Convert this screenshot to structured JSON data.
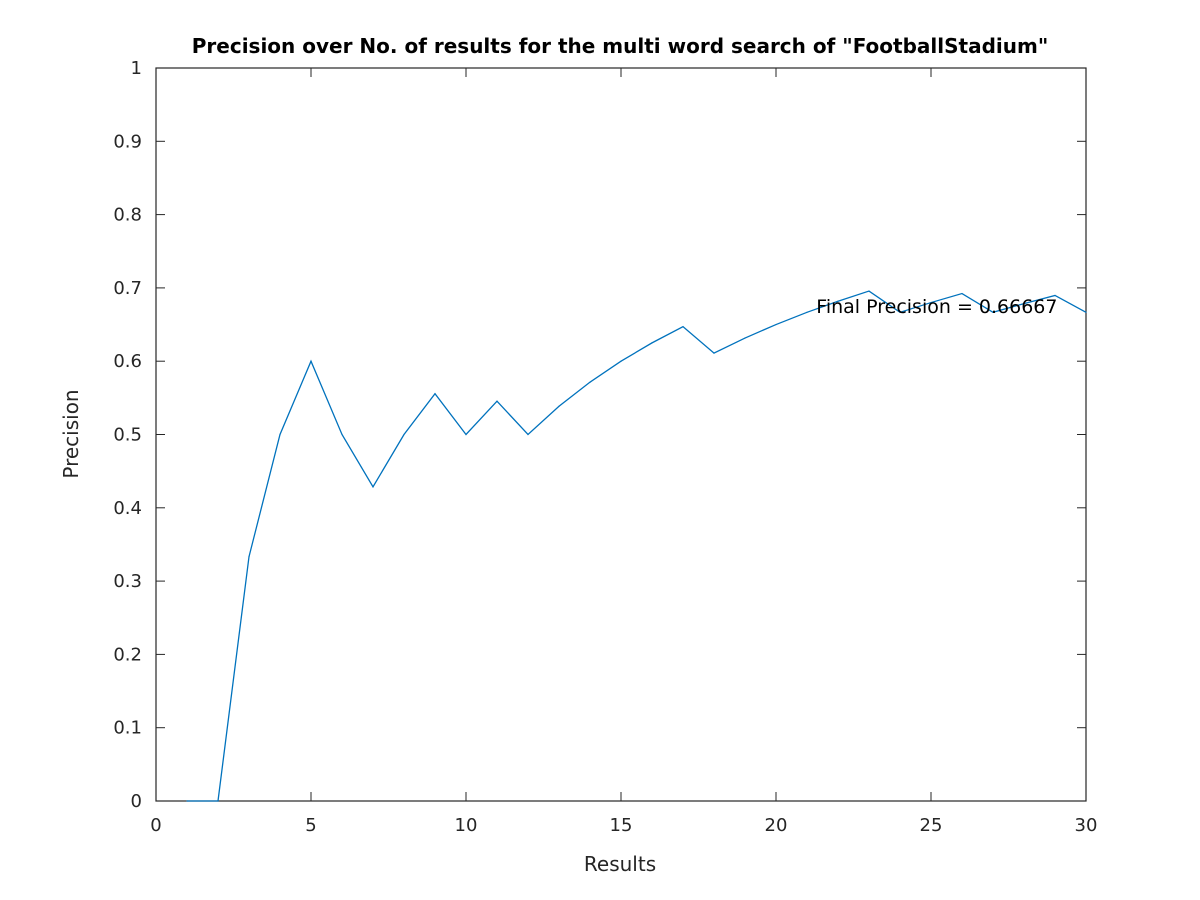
{
  "chart_data": {
    "type": "line",
    "title": "Precision over No. of results for the multi word search of \"FootballStadium\"",
    "xlabel": "Results",
    "ylabel": "Precision",
    "xlim": [
      0,
      30
    ],
    "ylim": [
      0,
      1
    ],
    "xticks": [
      "0",
      "5",
      "10",
      "15",
      "20",
      "25",
      "30"
    ],
    "yticks": [
      "0",
      "0.1",
      "0.2",
      "0.3",
      "0.4",
      "0.5",
      "0.6",
      "0.7",
      "0.8",
      "0.9",
      "1"
    ],
    "grid": false,
    "box": true,
    "series": [
      {
        "color": "#0072bd",
        "x": [
          1,
          2,
          3,
          4,
          5,
          6,
          7,
          8,
          9,
          10,
          11,
          12,
          13,
          14,
          15,
          16,
          17,
          18,
          19,
          20,
          21,
          22,
          23,
          24,
          25,
          26,
          27,
          28,
          29,
          30
        ],
        "y": [
          0,
          0,
          0.3333,
          0.5,
          0.6,
          0.5,
          0.4286,
          0.5,
          0.5556,
          0.5,
          0.5455,
          0.5,
          0.5385,
          0.5714,
          0.6,
          0.625,
          0.6471,
          0.6111,
          0.6316,
          0.65,
          0.6667,
          0.6818,
          0.6957,
          0.6667,
          0.68,
          0.6923,
          0.6667,
          0.6786,
          0.6897,
          0.6667
        ]
      }
    ],
    "annotations": [
      {
        "text": "Final Precision = 0.66667",
        "x": 21.3,
        "y": 0.6667
      }
    ]
  }
}
